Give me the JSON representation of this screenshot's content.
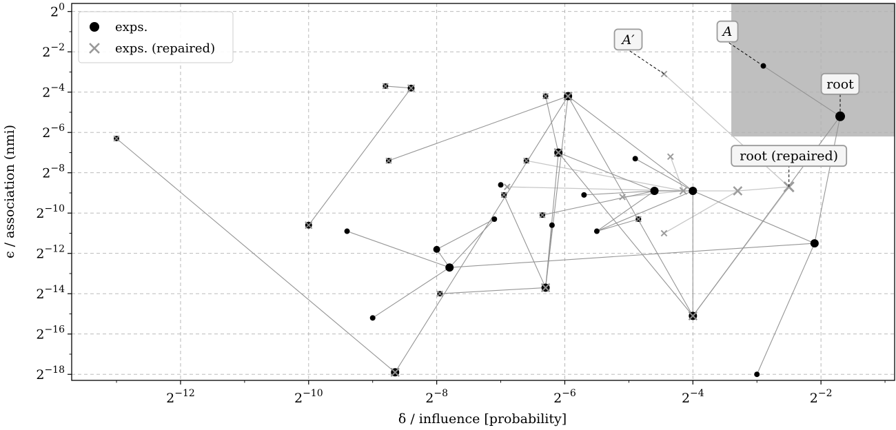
{
  "chart_data": {
    "type": "scatter",
    "xlabel": "δ / influence [probability]",
    "ylabel": "ϵ / association (nmi)",
    "x_scale": "log2",
    "y_scale": "log2",
    "xlim_log2": [
      -13.7,
      -0.85
    ],
    "ylim_log2": [
      -18.3,
      0.4
    ],
    "x_ticks_log2": [
      -12,
      -10,
      -8,
      -6,
      -4,
      -2
    ],
    "y_ticks_log2": [
      0,
      -2,
      -4,
      -6,
      -8,
      -10,
      -12,
      -14,
      -16,
      -18
    ],
    "tick_base": "2",
    "grid": true,
    "legend": {
      "placement": "top-left",
      "entries": [
        {
          "label": "exps.",
          "marker": "circle",
          "color": "#000000"
        },
        {
          "label": "exps. (repaired)",
          "marker": "x",
          "color": "#999999"
        }
      ]
    },
    "highlight_region": {
      "x_log2": [
        -3.4,
        -0.85
      ],
      "y_log2": [
        -6.2,
        0.4
      ],
      "color": "#bfbfbf"
    },
    "nodes": [
      {
        "id": "root",
        "x": -1.7,
        "y": -5.2,
        "size": 7,
        "repaired": false,
        "shared": false
      },
      {
        "id": "A",
        "x": -2.9,
        "y": -2.7,
        "size": 4,
        "repaired": false,
        "shared": false
      },
      {
        "id": "r1",
        "x": -2.1,
        "y": -11.5,
        "size": 6,
        "repaired": false,
        "shared": false
      },
      {
        "id": "r2",
        "x": -3.0,
        "y": -18.0,
        "size": 4,
        "repaired": false,
        "shared": false
      },
      {
        "id": "r3",
        "x": -4.0,
        "y": -8.9,
        "size": 6,
        "repaired": false,
        "shared": false
      },
      {
        "id": "r4",
        "x": -4.6,
        "y": -8.9,
        "size": 6,
        "repaired": false,
        "shared": false
      },
      {
        "id": "r5",
        "x": -4.9,
        "y": -7.3,
        "size": 4,
        "repaired": false,
        "shared": false
      },
      {
        "id": "r6",
        "x": -5.7,
        "y": -9.1,
        "size": 4,
        "repaired": false,
        "shared": false
      },
      {
        "id": "r7",
        "x": -5.5,
        "y": -10.9,
        "size": 4,
        "repaired": false,
        "shared": false
      },
      {
        "id": "r8",
        "x": -6.2,
        "y": -10.6,
        "size": 4,
        "repaired": false,
        "shared": false
      },
      {
        "id": "r9",
        "x": -7.0,
        "y": -8.6,
        "size": 4,
        "repaired": false,
        "shared": false
      },
      {
        "id": "r10",
        "x": -7.1,
        "y": -10.3,
        "size": 4,
        "repaired": false,
        "shared": false
      },
      {
        "id": "r11",
        "x": -8.0,
        "y": -11.8,
        "size": 5,
        "repaired": false,
        "shared": false
      },
      {
        "id": "r12",
        "x": -7.8,
        "y": -12.7,
        "size": 6,
        "repaired": false,
        "shared": false
      },
      {
        "id": "r13",
        "x": -9.4,
        "y": -10.9,
        "size": 4,
        "repaired": false,
        "shared": false
      },
      {
        "id": "r14",
        "x": -9.0,
        "y": -15.2,
        "size": 4,
        "repaired": false,
        "shared": false
      },
      {
        "id": "s1",
        "x": -4.0,
        "y": -15.1,
        "size": 6,
        "repaired": true,
        "shared": true
      },
      {
        "id": "s2",
        "x": -5.95,
        "y": -4.2,
        "size": 6,
        "repaired": true,
        "shared": true
      },
      {
        "id": "s3",
        "x": -6.3,
        "y": -4.2,
        "size": 4,
        "repaired": true,
        "shared": true
      },
      {
        "id": "s4",
        "x": -6.1,
        "y": -7.0,
        "size": 6,
        "repaired": true,
        "shared": true
      },
      {
        "id": "s5",
        "x": -6.3,
        "y": -13.7,
        "size": 6,
        "repaired": true,
        "shared": true
      },
      {
        "id": "s6",
        "x": -8.4,
        "y": -3.8,
        "size": 5,
        "repaired": true,
        "shared": true
      },
      {
        "id": "s7",
        "x": -8.8,
        "y": -3.7,
        "size": 4,
        "repaired": true,
        "shared": true
      },
      {
        "id": "s8",
        "x": -8.75,
        "y": -7.4,
        "size": 4,
        "repaired": true,
        "shared": true
      },
      {
        "id": "s9",
        "x": -10.0,
        "y": -10.6,
        "size": 5,
        "repaired": true,
        "shared": true
      },
      {
        "id": "s10",
        "x": -13.0,
        "y": -6.3,
        "size": 4,
        "repaired": true,
        "shared": true
      },
      {
        "id": "s11",
        "x": -8.65,
        "y": -17.9,
        "size": 6,
        "repaired": true,
        "shared": true
      },
      {
        "id": "s12",
        "x": -7.95,
        "y": -14.0,
        "size": 4,
        "repaired": true,
        "shared": true
      },
      {
        "id": "s13",
        "x": -6.95,
        "y": -9.1,
        "size": 4,
        "repaired": true,
        "shared": true
      },
      {
        "id": "s14",
        "x": -6.6,
        "y": -7.4,
        "size": 4,
        "repaired": true,
        "shared": true
      },
      {
        "id": "s15",
        "x": -6.35,
        "y": -10.1,
        "size": 4,
        "repaired": true,
        "shared": true
      },
      {
        "id": "s16",
        "x": -4.85,
        "y": -10.3,
        "size": 4,
        "repaired": true,
        "shared": true
      },
      {
        "id": "rr",
        "x": -2.5,
        "y": -8.7,
        "size": 7,
        "repaired": true,
        "shared": false
      },
      {
        "id": "rr1",
        "x": -3.3,
        "y": -8.9,
        "size": 6,
        "repaired": true,
        "shared": false
      },
      {
        "id": "rr2",
        "x": -4.15,
        "y": -8.9,
        "size": 5,
        "repaired": true,
        "shared": false
      },
      {
        "id": "rr3",
        "x": -4.35,
        "y": -7.2,
        "size": 4,
        "repaired": true,
        "shared": false
      },
      {
        "id": "Ap",
        "x": -4.45,
        "y": -3.1,
        "size": 4,
        "repaired": true,
        "shared": false
      },
      {
        "id": "rr4",
        "x": -5.1,
        "y": -9.2,
        "size": 4,
        "repaired": true,
        "shared": false
      },
      {
        "id": "rr5",
        "x": -4.45,
        "y": -11.0,
        "size": 4,
        "repaired": true,
        "shared": false
      },
      {
        "id": "rr6",
        "x": -6.9,
        "y": -8.7,
        "size": 4,
        "repaired": true,
        "shared": false
      }
    ],
    "edges_black": [
      [
        "root",
        "A"
      ],
      [
        "root",
        "r1"
      ],
      [
        "root",
        "s1"
      ],
      [
        "r1",
        "r2"
      ],
      [
        "r1",
        "r3"
      ],
      [
        "r1",
        "r12"
      ],
      [
        "r3",
        "r4"
      ],
      [
        "r3",
        "r5"
      ],
      [
        "r3",
        "s1"
      ],
      [
        "r3",
        "s2"
      ],
      [
        "r3",
        "r7"
      ],
      [
        "r4",
        "r6"
      ],
      [
        "r4",
        "s4"
      ],
      [
        "r4",
        "r7"
      ],
      [
        "r4",
        "s15"
      ],
      [
        "r12",
        "r11"
      ],
      [
        "r12",
        "r10"
      ],
      [
        "r12",
        "r14"
      ],
      [
        "r12",
        "r13"
      ],
      [
        "r11",
        "r10"
      ],
      [
        "s1",
        "s4"
      ],
      [
        "s1",
        "s2"
      ],
      [
        "s4",
        "s3"
      ],
      [
        "s4",
        "s5"
      ],
      [
        "s2",
        "s11"
      ],
      [
        "s2",
        "s5"
      ],
      [
        "s2",
        "s8"
      ],
      [
        "s5",
        "s13"
      ],
      [
        "s5",
        "r8"
      ],
      [
        "s5",
        "s12"
      ],
      [
        "s6",
        "s9"
      ],
      [
        "s6",
        "s7"
      ],
      [
        "s11",
        "s10"
      ],
      [
        "r7",
        "s16"
      ]
    ],
    "edges_gray": [
      [
        "rr",
        "Ap"
      ],
      [
        "rr",
        "rr1"
      ],
      [
        "rr",
        "s1"
      ],
      [
        "rr1",
        "rr2"
      ],
      [
        "rr1",
        "rr5"
      ],
      [
        "rr2",
        "rr3"
      ],
      [
        "rr2",
        "rr4"
      ],
      [
        "rr2",
        "rr6"
      ],
      [
        "rr2",
        "s14"
      ]
    ],
    "annotations": [
      {
        "text": "A′",
        "target": "Ap",
        "italic": true
      },
      {
        "text": "A",
        "target": "A",
        "italic": true
      },
      {
        "text": "root",
        "target": "root",
        "italic": false
      },
      {
        "text": "root (repaired)",
        "target": "rr",
        "italic": false
      }
    ]
  }
}
